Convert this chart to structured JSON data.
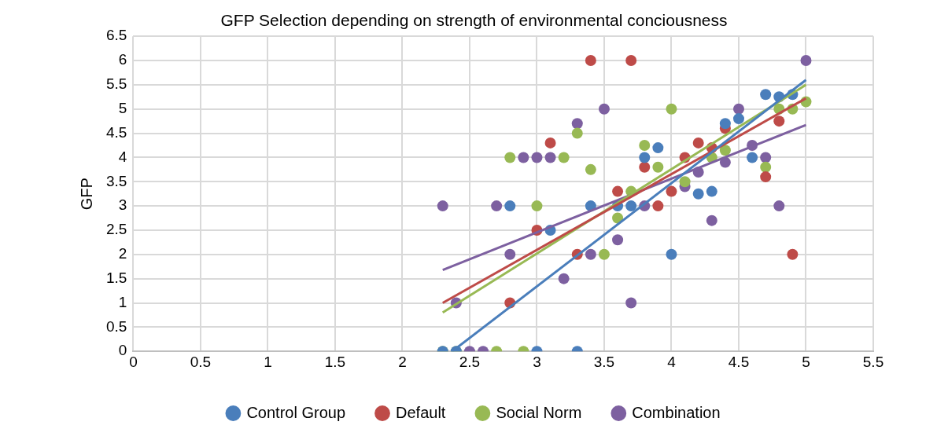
{
  "chart_data": {
    "type": "scatter",
    "title": "GFP Selection depending on strength of environmental conciousness",
    "ylabel": "GFP",
    "xlim": [
      0,
      5.5
    ],
    "xticks": [
      0,
      0.5,
      1,
      1.5,
      2,
      2.5,
      3,
      3.5,
      4,
      4.5,
      5,
      5.5
    ],
    "ylim": [
      0,
      6.5
    ],
    "yticks": [
      0,
      0.5,
      1,
      1.5,
      2,
      2.5,
      3,
      3.5,
      4,
      4.5,
      5,
      5.5,
      6,
      6.5
    ],
    "grid": true,
    "legend": "bottom",
    "marker": "circle",
    "series": [
      {
        "name": "Control Group",
        "color": "#4a7ebb",
        "x": [
          2.3,
          2.4,
          2.8,
          3.0,
          3.1,
          3.3,
          3.4,
          3.6,
          3.7,
          3.8,
          3.9,
          4.0,
          4.2,
          4.3,
          4.4,
          4.5,
          4.6,
          4.7,
          4.8,
          4.9
        ],
        "values": [
          0,
          0,
          3,
          0,
          2.5,
          0,
          3,
          3,
          3,
          4,
          4.2,
          2,
          3.25,
          3.3,
          4.7,
          4.8,
          4,
          5.3,
          5.25,
          5.3
        ]
      },
      {
        "name": "Default",
        "color": "#be4b48",
        "x": [
          2.8,
          3.0,
          3.1,
          3.3,
          3.4,
          3.6,
          3.7,
          3.8,
          3.9,
          4.0,
          4.1,
          4.2,
          4.3,
          4.4,
          4.7,
          4.8,
          4.9
        ],
        "values": [
          1,
          2.5,
          4.3,
          2,
          6,
          3.3,
          6,
          3.8,
          3,
          3.3,
          4,
          4.3,
          4.2,
          4.6,
          3.6,
          4.75,
          2
        ]
      },
      {
        "name": "Social Norm",
        "color": "#98b954",
        "x": [
          2.3,
          2.4,
          2.7,
          2.9,
          2.8,
          3.0,
          3.2,
          3.3,
          3.4,
          3.5,
          3.6,
          3.7,
          3.8,
          3.9,
          4.0,
          4.1,
          4.3,
          4.4,
          4.7,
          4.8,
          4.9,
          5.0
        ],
        "values": [
          0,
          0,
          0,
          0,
          4,
          3,
          4,
          4.5,
          3.75,
          2,
          2.75,
          3.3,
          4.25,
          3.8,
          5,
          3.5,
          4,
          4.15,
          3.8,
          5,
          5,
          5.15
        ]
      },
      {
        "name": "Combination",
        "color": "#7d60a0",
        "x": [
          2.3,
          2.4,
          2.5,
          2.6,
          2.7,
          2.8,
          2.9,
          3.0,
          3.1,
          3.2,
          3.3,
          3.4,
          3.5,
          3.6,
          3.7,
          3.8,
          4.1,
          4.2,
          4.3,
          4.4,
          4.5,
          4.6,
          4.7,
          4.8,
          5.0
        ],
        "values": [
          3,
          1,
          0,
          0,
          3,
          2,
          4,
          4,
          4,
          1.5,
          4.7,
          2,
          5,
          2.3,
          1,
          3,
          3.4,
          3.7,
          2.7,
          3.9,
          5,
          4.25,
          4,
          3,
          6
        ]
      },
      {
        "type": "line",
        "marker": "none",
        "color": "#4a7ebb",
        "x": [
          2.37,
          5.0
        ],
        "values": [
          0,
          5.6
        ]
      },
      {
        "type": "line",
        "marker": "none",
        "color": "#be4b48",
        "x": [
          2.3,
          5.0
        ],
        "values": [
          1.0,
          5.22
        ]
      },
      {
        "type": "line",
        "marker": "none",
        "color": "#98b954",
        "x": [
          2.3,
          5.0
        ],
        "values": [
          0.8,
          5.5
        ]
      },
      {
        "type": "line",
        "marker": "none",
        "color": "#7d60a0",
        "x": [
          2.3,
          5.0
        ],
        "values": [
          1.68,
          4.67
        ]
      }
    ]
  }
}
